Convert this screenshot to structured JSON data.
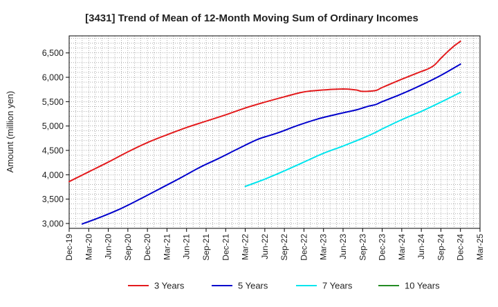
{
  "chart_data": {
    "type": "line",
    "title": "[3431]  Trend of Mean of 12-Month Moving Sum of Ordinary Incomes",
    "xlabel": "",
    "ylabel": "Amount (million yen)",
    "ylim": [
      2900,
      6850
    ],
    "yticks": [
      3000,
      3500,
      4000,
      4500,
      5000,
      5500,
      6000,
      6500
    ],
    "ytick_labels": [
      "3,000",
      "3,500",
      "4,000",
      "4,500",
      "5,000",
      "5,500",
      "6,000",
      "6,500"
    ],
    "xlim": [
      0,
      63
    ],
    "xticks": [
      0,
      3,
      6,
      9,
      12,
      15,
      18,
      21,
      24,
      27,
      30,
      33,
      36,
      39,
      42,
      45,
      48,
      51,
      54,
      57,
      60,
      63
    ],
    "xtick_labels": [
      "Dec-19",
      "Mar-20",
      "Jun-20",
      "Sep-20",
      "Dec-20",
      "Mar-21",
      "Jun-21",
      "Sep-21",
      "Dec-21",
      "Mar-22",
      "Jun-22",
      "Sep-22",
      "Dec-22",
      "Mar-23",
      "Jun-23",
      "Sep-23",
      "Dec-23",
      "Mar-24",
      "Jun-24",
      "Sep-24",
      "Dec-24",
      "Mar-25"
    ],
    "grid": true,
    "legend_position": "bottom",
    "series": [
      {
        "name": "3 Years",
        "color": "#e31a1c",
        "points": [
          [
            0,
            3860
          ],
          [
            3,
            4060
          ],
          [
            6,
            4260
          ],
          [
            9,
            4470
          ],
          [
            12,
            4660
          ],
          [
            15,
            4820
          ],
          [
            18,
            4970
          ],
          [
            21,
            5100
          ],
          [
            24,
            5230
          ],
          [
            27,
            5370
          ],
          [
            30,
            5490
          ],
          [
            33,
            5600
          ],
          [
            36,
            5700
          ],
          [
            39,
            5740
          ],
          [
            42,
            5760
          ],
          [
            44,
            5740
          ],
          [
            45,
            5710
          ],
          [
            47,
            5730
          ],
          [
            48,
            5790
          ],
          [
            51,
            5960
          ],
          [
            54,
            6120
          ],
          [
            55,
            6170
          ],
          [
            56,
            6250
          ],
          [
            57,
            6390
          ],
          [
            58,
            6520
          ],
          [
            59,
            6640
          ],
          [
            60,
            6740
          ]
        ]
      },
      {
        "name": "5 Years",
        "color": "#0000cc",
        "points": [
          [
            2,
            2990
          ],
          [
            5,
            3140
          ],
          [
            8,
            3310
          ],
          [
            11,
            3510
          ],
          [
            14,
            3720
          ],
          [
            17,
            3930
          ],
          [
            20,
            4150
          ],
          [
            23,
            4340
          ],
          [
            26,
            4540
          ],
          [
            29,
            4730
          ],
          [
            32,
            4860
          ],
          [
            35,
            5010
          ],
          [
            38,
            5140
          ],
          [
            41,
            5240
          ],
          [
            44,
            5330
          ],
          [
            45,
            5370
          ],
          [
            46,
            5410
          ],
          [
            47,
            5440
          ],
          [
            48,
            5500
          ],
          [
            51,
            5660
          ],
          [
            54,
            5840
          ],
          [
            57,
            6040
          ],
          [
            60,
            6270
          ]
        ]
      },
      {
        "name": "7 Years",
        "color": "#00e5ee",
        "points": [
          [
            27,
            3760
          ],
          [
            30,
            3910
          ],
          [
            33,
            4080
          ],
          [
            36,
            4260
          ],
          [
            39,
            4440
          ],
          [
            42,
            4590
          ],
          [
            45,
            4750
          ],
          [
            47,
            4870
          ],
          [
            48,
            4940
          ],
          [
            51,
            5130
          ],
          [
            54,
            5300
          ],
          [
            57,
            5490
          ],
          [
            60,
            5690
          ]
        ]
      },
      {
        "name": "10 Years",
        "color": "#228b22",
        "points": []
      }
    ]
  }
}
